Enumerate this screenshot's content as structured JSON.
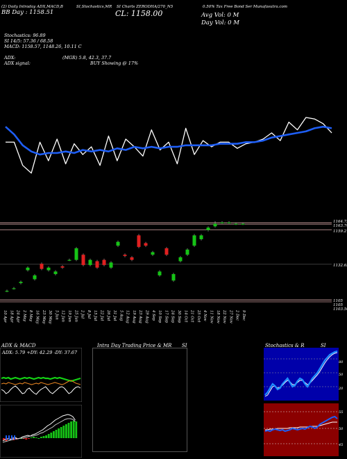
{
  "header": {
    "left_line1": "(2) Daily Intraday ADX,MACD,B",
    "left_line2": "BB  Day  : 1158.51",
    "mid_line1": "SI,Stochastics,MR",
    "right_line1": "SI Charts ZERODHA/270_N5",
    "close_line": "CL: 1158.00",
    "right_line2": "0.50% Tax Free  Bond  Ser  Munafasutra.com",
    "avg_vol": "Avg Vol: 0  M",
    "day_vol": "Day Vol: 0   M"
  },
  "indicators": {
    "stochastics": "Stochastics: 96.89",
    "si": "SI  14/5: 57.36   / 68.58",
    "macd": "MACD: 1158.57,  1148.26,  10.11 C",
    "adx": "ADX:",
    "mgr": "(MGR) 5.8,  42.3,  37.7",
    "adx_signal": "ADX  signal:",
    "buy_signal": "BUY Showing @ 17%"
  },
  "price_labels": [
    "1164.75",
    "1163.70",
    "1159.27",
    "1132.63",
    "1105",
    "1105",
    "1103.50"
  ],
  "x_tick_labels": [
    "10 Apr",
    "18 Apr",
    "24 Apr",
    "2 May",
    "8 May",
    "16 May",
    "23 May",
    "30 May",
    "5 Jun",
    "12 Jun",
    "19 Jun",
    "25 Jun",
    "2 Jul",
    "8 Jul",
    "15 Jul",
    "22 Jul",
    "26 Jul",
    "31 Jul",
    "5 Aug",
    "12 Aug",
    "19 Aug",
    "23 Aug",
    "29 Aug",
    "4 Sep",
    "10 Sep",
    "17 Sep",
    "24 Sep",
    "30 Sep",
    "14 Oct",
    "21 Oct",
    "25 Oct",
    "4 Nov",
    "11 Nov",
    "18 Nov",
    "22 Nov",
    "27 Nov",
    "2 Dec",
    "9 Dec"
  ],
  "panels": {
    "adx_title": "ADX  & MACD",
    "adx_readout": "ADX: 5.79  +DY: 42.29  -DY: 37.67",
    "intraday_title": "Intra  Day Trading Price  & MR",
    "intraday_si": "SI",
    "stoch_title": "Stochastics & R",
    "stoch_si": "SI",
    "stoch_axis": [
      "80",
      "50",
      "20"
    ],
    "si_axis": [
      "55",
      "50",
      "45"
    ]
  },
  "colors": {
    "ema_line": "#1e5ef5",
    "price_line": "#ffffff",
    "candle_up": "#16c316",
    "candle_down": "#e02020",
    "support_line": "#d4a3a3",
    "stoch_bg": "#0000aa",
    "si_bg": "#8b0000"
  },
  "chart_data": {
    "type": "line",
    "series": [
      {
        "values": [
          1150,
          1150,
          1135,
          1130,
          1150,
          1138,
          1152,
          1136,
          1149,
          1142,
          1147,
          1135,
          1154,
          1138,
          1152,
          1147,
          1141,
          1158,
          1145,
          1150,
          1136,
          1159,
          1142,
          1151,
          1147,
          1150,
          1150,
          1146,
          1149,
          1150,
          1152,
          1156,
          1151,
          1163,
          1158,
          1166,
          1165,
          1162,
          1156
        ]
      },
      {
        "values": [
          1160,
          1155,
          1148,
          1144,
          1142,
          1143,
          1143,
          1144,
          1143,
          1145,
          1144,
          1145,
          1144,
          1146,
          1145,
          1147,
          1146,
          1147,
          1146,
          1147,
          1147,
          1148,
          1148,
          1148,
          1148,
          1149,
          1149,
          1149,
          1150,
          1150,
          1151,
          1153,
          1154,
          1155,
          1156,
          1157,
          1159,
          1160,
          1159
        ]
      }
    ],
    "candles": {
      "open": [
        1112,
        1114,
        1118,
        1128,
        1121,
        1133,
        1128,
        1125,
        1131,
        1136,
        1136,
        1140,
        1132,
        1135,
        1136,
        1130,
        1147,
        1140,
        1138,
        1155,
        1149,
        1140,
        1124,
        1145,
        1120,
        1135,
        1140,
        1147,
        1152,
        1159,
        1162,
        1165,
        1165,
        1164,
        1164
      ],
      "close": [
        1112,
        1114,
        1119,
        1130,
        1124,
        1129,
        1130,
        1127,
        1130,
        1136,
        1145,
        1132,
        1136,
        1130,
        1132,
        1134,
        1150,
        1139,
        1136,
        1146,
        1147,
        1142,
        1127,
        1140,
        1125,
        1138,
        1144,
        1155,
        1155,
        1161,
        1164,
        1165,
        1165,
        1164,
        1164
      ],
      "high": [
        1113,
        1115,
        1120,
        1131,
        1125,
        1134,
        1131,
        1128,
        1132,
        1137,
        1146,
        1141,
        1137,
        1136,
        1137,
        1135,
        1151,
        1141,
        1139,
        1156,
        1150,
        1143,
        1128,
        1146,
        1126,
        1139,
        1145,
        1156,
        1156,
        1162,
        1166,
        1166,
        1166,
        1165,
        1165
      ],
      "low": [
        1111,
        1113,
        1117,
        1127,
        1120,
        1128,
        1127,
        1124,
        1129,
        1135,
        1135,
        1131,
        1131,
        1129,
        1131,
        1129,
        1146,
        1138,
        1135,
        1145,
        1146,
        1139,
        1123,
        1139,
        1119,
        1134,
        1139,
        1146,
        1151,
        1158,
        1161,
        1164,
        1164,
        1163,
        1163
      ]
    },
    "ylim": [
      1103.5,
      1166
    ]
  }
}
